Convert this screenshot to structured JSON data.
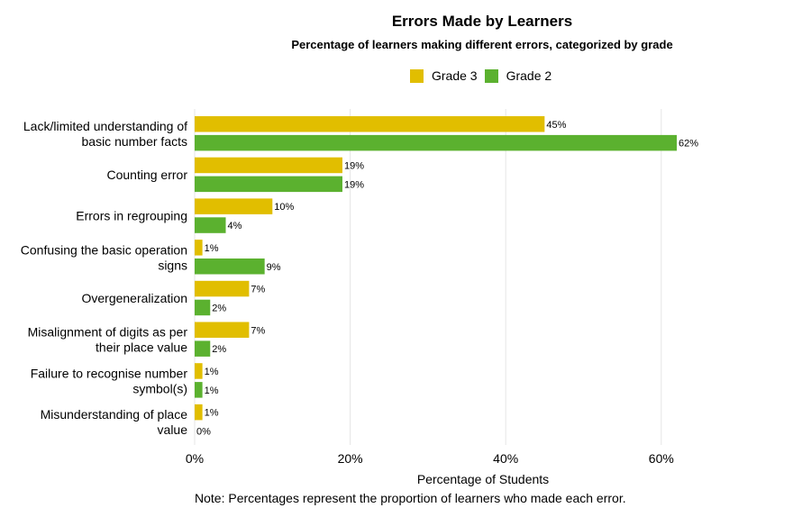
{
  "title": "Errors Made by Learners",
  "subtitle": "Percentage of learners making different errors, categorized by grade",
  "note": "Note: Percentages represent the proportion of learners who made each error.",
  "chart_data": {
    "type": "bar",
    "orientation": "horizontal",
    "categories": [
      [
        "Lack/limited understanding of",
        "basic number facts"
      ],
      [
        "Counting error"
      ],
      [
        "Errors in regrouping"
      ],
      [
        "Confusing the basic operation",
        "signs"
      ],
      [
        "Overgeneralization"
      ],
      [
        "Misalignment of digits as per",
        "their place value"
      ],
      [
        "Failure to recognise number",
        "symbol(s)"
      ],
      [
        "Misunderstanding of place",
        "value"
      ]
    ],
    "series": [
      {
        "name": "Grade 3",
        "color": "#E1BE00",
        "values": [
          45,
          19,
          10,
          1,
          7,
          7,
          1,
          1
        ],
        "labels": [
          "45%",
          "19%",
          "10%",
          "1%",
          "7%",
          "7%",
          "1%",
          "1%"
        ]
      },
      {
        "name": "Grade 2",
        "color": "#5BB12F",
        "values": [
          62,
          19,
          4,
          9,
          2,
          2,
          1,
          0
        ],
        "labels": [
          "62%",
          "19%",
          "4%",
          "9%",
          "2%",
          "2%",
          "1%",
          "0%"
        ]
      }
    ],
    "xlabel": "Percentage of Students",
    "xlim": [
      0,
      70
    ],
    "xticks": [
      0,
      20,
      40,
      60
    ],
    "xtick_labels": [
      "0%",
      "20%",
      "40%",
      "60%"
    ],
    "grid": "vertical",
    "legend_position": "top"
  }
}
